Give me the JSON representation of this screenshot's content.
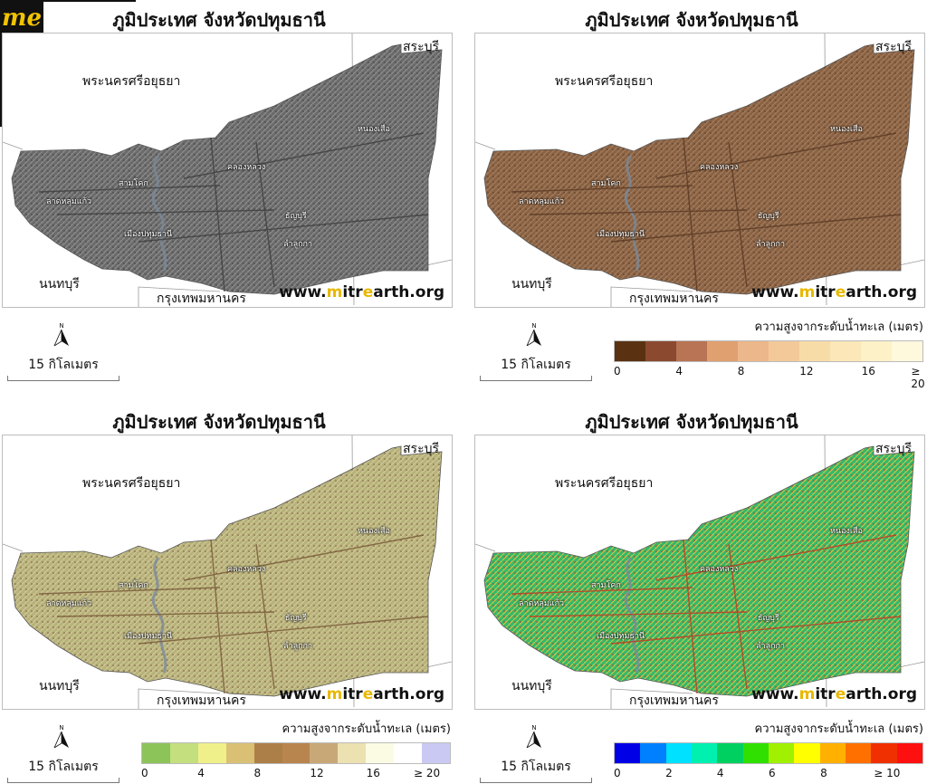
{
  "logo_text": "me",
  "panels": [
    {
      "title": "ภูมิประเทศ จังหวัดปทุมธานี",
      "fill": "#6b6b6b",
      "texture": "#8f8f8f",
      "dark": "#3f3f3f",
      "labels": {
        "ayutthaya": "พระนครศรีอยุธยา",
        "saraburi": "สระบุรี",
        "nonthaburi": "นนทบุรี",
        "bangkok": "กรุงเทพมหานคร"
      },
      "districts": {
        "nong_suea": "หนองเสือ",
        "khlong_luang": "คลองหลวง",
        "sam_khok": "สามโคก",
        "lat_lum_kaeo": "ลาดหลุมแก้ว",
        "thanyaburi": "ธัญบุรี",
        "mueang": "เมืองปทุมธานี",
        "lam_luk_ka": "ลำลูกกา"
      },
      "watermark": {
        "pre": "www.",
        "m": "m",
        "mid": "itr",
        "e": "e",
        "post": "arth.org"
      },
      "north": "N",
      "scale_text": "15 กิโลเมตร",
      "legend": null
    },
    {
      "title": "ภูมิประเทศ จังหวัดปทุมธานี",
      "fill": "#8a6244",
      "texture": "#a57f5e",
      "dark": "#5a3a24",
      "labels": {
        "ayutthaya": "พระนครศรีอยุธยา",
        "saraburi": "สระบุรี",
        "nonthaburi": "นนทบุรี",
        "bangkok": "กรุงเทพมหานคร"
      },
      "districts": {
        "nong_suea": "หนองเสือ",
        "khlong_luang": "คลองหลวง",
        "sam_khok": "สามโคก",
        "lat_lum_kaeo": "ลาดหลุมแก้ว",
        "thanyaburi": "ธัญบุรี",
        "mueang": "เมืองปทุมธานี",
        "lam_luk_ka": "ลำลูกกา"
      },
      "watermark": {
        "pre": "www.",
        "m": "m",
        "mid": "itr",
        "e": "e",
        "post": "arth.org"
      },
      "north": "N",
      "scale_text": "15 กิโลเมตร",
      "legend": {
        "title": "ความสูงจากระดับน้ำทะเล (เมตร)",
        "colors": [
          "#5a3212",
          "#8b4a30",
          "#b87454",
          "#e0a070",
          "#ecb78a",
          "#f3c99a",
          "#f8dca8",
          "#fbe7b7",
          "#fdf1c8",
          "#fef8dc"
        ],
        "ticks": [
          {
            "t": "0",
            "f": 0
          },
          {
            "t": "4",
            "f": 0.2
          },
          {
            "t": "8",
            "f": 0.4
          },
          {
            "t": "12",
            "f": 0.6
          },
          {
            "t": "16",
            "f": 0.8
          },
          {
            "t": "≥ 20",
            "f": 0.96
          }
        ]
      }
    },
    {
      "title": "ภูมิประเทศ จังหวัดปทุมธานี",
      "fill": "#b7b27a",
      "texture": "#d0c99a",
      "dark": "#7a5a3a",
      "labels": {
        "ayutthaya": "พระนครศรีอยุธยา",
        "saraburi": "สระบุรี",
        "nonthaburi": "นนทบุรี",
        "bangkok": "กรุงเทพมหานคร"
      },
      "districts": {
        "nong_suea": "หนองเสือ",
        "khlong_luang": "คลองหลวง",
        "sam_khok": "สามโคก",
        "lat_lum_kaeo": "ลาดหลุมแก้ว",
        "thanyaburi": "ธัญบุรี",
        "mueang": "เมืองปทุมธานี",
        "lam_luk_ka": "ลำลูกกา"
      },
      "watermark": {
        "pre": "www.",
        "m": "m",
        "mid": "itr",
        "e": "e",
        "post": "arth.org"
      },
      "north": "N",
      "scale_text": "15 กิโลเมตร",
      "legend": {
        "title": "ความสูงจากระดับน้ำทะเล (เมตร)",
        "colors": [
          "#8cc45a",
          "#c4df7e",
          "#f0f08a",
          "#d9c074",
          "#ad7f48",
          "#b9854e",
          "#c9a878",
          "#ece1b0",
          "#fbfbe4",
          "#ffffff",
          "#c9c9f4"
        ],
        "ticks": [
          {
            "t": "0",
            "f": 0
          },
          {
            "t": "4",
            "f": 0.182
          },
          {
            "t": "8",
            "f": 0.364
          },
          {
            "t": "12",
            "f": 0.545
          },
          {
            "t": "16",
            "f": 0.727
          },
          {
            "t": "≥ 20",
            "f": 0.88
          }
        ]
      }
    },
    {
      "title": "ภูมิประเทศ จังหวัดปทุมธานี",
      "fill": "#35b86a",
      "texture": "#c9c84a",
      "dark": "#c23a1e",
      "labels": {
        "ayutthaya": "พระนครศรีอยุธยา",
        "saraburi": "สระบุรี",
        "nonthaburi": "นนทบุรี",
        "bangkok": "กรุงเทพมหานคร"
      },
      "districts": {
        "nong_suea": "หนองเสือ",
        "khlong_luang": "คลองหลวง",
        "sam_khok": "สามโคก",
        "lat_lum_kaeo": "ลาดหลุมแก้ว",
        "thanyaburi": "ธัญบุรี",
        "mueang": "เมืองปทุมธานี",
        "lam_luk_ka": "ลำลูกกา"
      },
      "watermark": {
        "pre": "www.",
        "m": "m",
        "mid": "itr",
        "e": "e",
        "post": "arth.org"
      },
      "north": "N",
      "scale_text": "15 กิโลเมตร",
      "legend": {
        "title": "ความสูงจากระดับน้ำทะเล (เมตร)",
        "colors": [
          "#0000e6",
          "#0080ff",
          "#00e0ff",
          "#00f0b0",
          "#00d060",
          "#30e000",
          "#a0f000",
          "#ffff00",
          "#ffb000",
          "#ff7000",
          "#f03000",
          "#ff1010"
        ],
        "ticks": [
          {
            "t": "0",
            "f": 0
          },
          {
            "t": "2",
            "f": 0.167
          },
          {
            "t": "4",
            "f": 0.333
          },
          {
            "t": "6",
            "f": 0.5
          },
          {
            "t": "8",
            "f": 0.667
          },
          {
            "t": "≥ 10",
            "f": 0.84
          }
        ]
      }
    }
  ]
}
